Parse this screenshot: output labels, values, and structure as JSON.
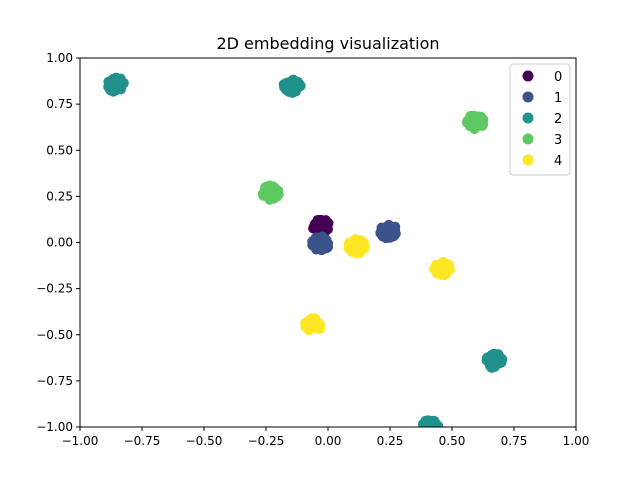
{
  "chart_data": {
    "type": "scatter",
    "title": "2D embedding visualization",
    "xlabel": "",
    "ylabel": "",
    "xlim": [
      -1.0,
      1.0
    ],
    "ylim": [
      -1.0,
      1.0
    ],
    "xticks": [
      "−1.00",
      "−0.75",
      "−0.50",
      "−0.25",
      "0.00",
      "0.25",
      "0.50",
      "0.75",
      "1.00"
    ],
    "yticks": [
      "−1.00",
      "−0.75",
      "−0.50",
      "−0.25",
      "0.00",
      "0.25",
      "0.50",
      "0.75",
      "1.00"
    ],
    "grid": false,
    "legend_position": "top-right",
    "series": [
      {
        "name": "0",
        "color": "#440154",
        "clusters": [
          {
            "x": -0.03,
            "y": 0.09
          }
        ]
      },
      {
        "name": "1",
        "color": "#3b528b",
        "clusters": [
          {
            "x": -0.03,
            "y": -0.005
          },
          {
            "x": 0.245,
            "y": 0.06
          }
        ]
      },
      {
        "name": "2",
        "color": "#21918c",
        "clusters": [
          {
            "x": -0.855,
            "y": 0.855
          },
          {
            "x": -0.145,
            "y": 0.85
          },
          {
            "x": 0.67,
            "y": -0.64
          },
          {
            "x": 0.41,
            "y": -1.0
          }
        ]
      },
      {
        "name": "3",
        "color": "#5ec962",
        "clusters": [
          {
            "x": -0.23,
            "y": 0.27
          },
          {
            "x": 0.595,
            "y": 0.655
          }
        ]
      },
      {
        "name": "4",
        "color": "#fde725",
        "clusters": [
          {
            "x": 0.115,
            "y": -0.02
          },
          {
            "x": 0.46,
            "y": -0.14
          },
          {
            "x": -0.06,
            "y": -0.45
          }
        ]
      }
    ]
  }
}
